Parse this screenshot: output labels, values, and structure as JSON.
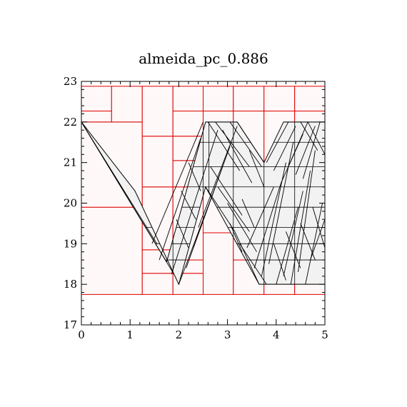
{
  "chart_data": {
    "type": "scatter",
    "title": "almeida_pc_0.886",
    "xlabel": "",
    "ylabel": "",
    "xlim": [
      0,
      5
    ],
    "ylim": [
      17,
      23
    ],
    "x_ticks": [
      "0",
      "1",
      "2",
      "3",
      "4",
      "5"
    ],
    "y_ticks": [
      "17",
      "18",
      "19",
      "20",
      "21",
      "22",
      "23"
    ],
    "grid": false,
    "colors": {
      "partition_lines": "#dd0000",
      "partition_fill": "#fff8f8",
      "trajectory": "#000000",
      "cell_fill": "#f2f2f2"
    },
    "partition_rects": [
      [
        0,
        1.25,
        17.75,
        19.9
      ],
      [
        0,
        1.25,
        19.9,
        22.0
      ],
      [
        0,
        0.62,
        22.0,
        22.27
      ],
      [
        0,
        0.62,
        22.27,
        22.88
      ],
      [
        0.62,
        1.25,
        22.0,
        22.88
      ],
      [
        1.25,
        1.88,
        17.75,
        18.27
      ],
      [
        1.25,
        1.88,
        18.27,
        18.85
      ],
      [
        1.25,
        1.88,
        18.85,
        20.4
      ],
      [
        1.25,
        1.88,
        20.4,
        21.65
      ],
      [
        1.25,
        1.88,
        21.65,
        22.88
      ],
      [
        1.88,
        2.5,
        17.75,
        18.27
      ],
      [
        1.88,
        2.5,
        18.27,
        18.6
      ],
      [
        1.88,
        2.5,
        18.6,
        20.4
      ],
      [
        1.88,
        2.5,
        20.4,
        21.05
      ],
      [
        1.88,
        2.5,
        21.05,
        21.65
      ],
      [
        1.88,
        2.5,
        21.65,
        22.27
      ],
      [
        1.88,
        2.5,
        22.27,
        22.88
      ],
      [
        2.5,
        3.12,
        17.75,
        19.27
      ],
      [
        2.5,
        3.12,
        19.27,
        22.27
      ],
      [
        2.5,
        3.12,
        22.27,
        22.88
      ],
      [
        3.12,
        3.75,
        17.75,
        18.6
      ],
      [
        3.12,
        3.75,
        18.6,
        22.27
      ],
      [
        3.12,
        3.75,
        22.27,
        22.88
      ],
      [
        3.75,
        4.38,
        17.75,
        22.27
      ],
      [
        3.75,
        4.38,
        22.27,
        22.88
      ],
      [
        4.38,
        5.0,
        17.75,
        18.85
      ],
      [
        4.38,
        5.0,
        18.85,
        19.9
      ],
      [
        4.38,
        5.0,
        19.9,
        22.27
      ],
      [
        4.38,
        5.0,
        22.27,
        22.88
      ]
    ],
    "trajectory": [
      [
        0,
        22.0
      ],
      [
        1.75,
        18.55
      ],
      [
        2.55,
        22.0
      ],
      [
        3.2,
        22.0
      ],
      [
        3.75,
        21.0
      ],
      [
        4.15,
        22.0
      ],
      [
        5.0,
        22.0
      ],
      [
        5.0,
        18.0
      ],
      [
        3.65,
        18.0
      ],
      [
        2.55,
        20.4
      ],
      [
        2.0,
        18.0
      ],
      [
        1.1,
        20.3
      ],
      [
        0.0,
        22.0
      ]
    ],
    "hatch_lines": [
      [
        [
          0,
          22.0
        ],
        [
          1.55,
          19.0
        ]
      ],
      [
        [
          0,
          22.0
        ],
        [
          1.9,
          18.25
        ]
      ],
      [
        [
          1.45,
          19.0
        ],
        [
          2.5,
          22.0
        ]
      ],
      [
        [
          1.6,
          18.6
        ],
        [
          2.45,
          21.6
        ]
      ],
      [
        [
          1.85,
          18.25
        ],
        [
          2.8,
          21.8
        ]
      ],
      [
        [
          2.0,
          18.0
        ],
        [
          2.75,
          20.4
        ]
      ],
      [
        [
          2.15,
          18.4
        ],
        [
          2.9,
          20.9
        ]
      ],
      [
        [
          2.3,
          18.9
        ],
        [
          3.05,
          21.4
        ]
      ],
      [
        [
          2.4,
          19.4
        ],
        [
          3.2,
          21.9
        ]
      ],
      [
        [
          2.55,
          20.4
        ],
        [
          3.15,
          19.3
        ]
      ],
      [
        [
          2.6,
          22.0
        ],
        [
          3.25,
          20.8
        ]
      ],
      [
        [
          2.75,
          22.0
        ],
        [
          3.45,
          20.9
        ]
      ],
      [
        [
          2.9,
          21.8
        ],
        [
          3.5,
          20.5
        ]
      ],
      [
        [
          3.05,
          22.0
        ],
        [
          3.7,
          20.9
        ]
      ],
      [
        [
          3.2,
          22.0
        ],
        [
          3.75,
          21.0
        ]
      ],
      [
        [
          2.65,
          20.9
        ],
        [
          3.3,
          19.7
        ]
      ],
      [
        [
          2.8,
          20.4
        ],
        [
          3.45,
          19.3
        ]
      ],
      [
        [
          3.0,
          20.0
        ],
        [
          3.6,
          18.8
        ]
      ],
      [
        [
          3.15,
          19.3
        ],
        [
          3.65,
          18.0
        ]
      ],
      [
        [
          3.25,
          19.0
        ],
        [
          3.8,
          18.0
        ]
      ],
      [
        [
          3.4,
          18.9
        ],
        [
          3.95,
          20.4
        ]
      ],
      [
        [
          3.55,
          18.4
        ],
        [
          4.1,
          20.5
        ]
      ],
      [
        [
          3.7,
          18.2
        ],
        [
          4.2,
          21.0
        ]
      ],
      [
        [
          3.85,
          18.5
        ],
        [
          4.35,
          21.5
        ]
      ],
      [
        [
          4.0,
          18.0
        ],
        [
          4.45,
          19.9
        ]
      ],
      [
        [
          4.15,
          18.2
        ],
        [
          4.55,
          20.3
        ]
      ],
      [
        [
          4.3,
          18.0
        ],
        [
          4.7,
          20.8
        ]
      ],
      [
        [
          4.45,
          18.3
        ],
        [
          4.8,
          21.3
        ]
      ],
      [
        [
          4.6,
          18.0
        ],
        [
          4.95,
          20.0
        ]
      ],
      [
        [
          4.7,
          18.6
        ],
        [
          5.0,
          19.6
        ]
      ],
      [
        [
          3.8,
          21.0
        ],
        [
          4.25,
          22.0
        ]
      ],
      [
        [
          3.95,
          20.8
        ],
        [
          4.4,
          21.9
        ]
      ],
      [
        [
          4.1,
          20.5
        ],
        [
          4.55,
          21.7
        ]
      ],
      [
        [
          4.25,
          20.9
        ],
        [
          4.65,
          22.0
        ]
      ],
      [
        [
          4.4,
          20.7
        ],
        [
          4.8,
          21.9
        ]
      ],
      [
        [
          4.55,
          20.6
        ],
        [
          4.9,
          22.0
        ]
      ],
      [
        [
          4.5,
          22.0
        ],
        [
          4.85,
          21.3
        ]
      ],
      [
        [
          4.65,
          22.0
        ],
        [
          5.0,
          21.2
        ]
      ],
      [
        [
          4.75,
          19.9
        ],
        [
          5.0,
          18.9
        ]
      ],
      [
        [
          4.5,
          19.5
        ],
        [
          4.8,
          18.6
        ]
      ],
      [
        [
          4.2,
          19.3
        ],
        [
          4.5,
          18.4
        ]
      ],
      [
        [
          3.95,
          19.0
        ],
        [
          4.2,
          18.1
        ]
      ],
      [
        [
          3.45,
          21.3
        ],
        [
          3.75,
          20.4
        ]
      ],
      [
        [
          3.3,
          20.1
        ],
        [
          3.55,
          19.4
        ]
      ],
      [
        [
          3.05,
          19.5
        ],
        [
          3.3,
          18.8
        ]
      ],
      [
        [
          2.2,
          21.0
        ],
        [
          2.45,
          20.3
        ]
      ],
      [
        [
          2.05,
          20.3
        ],
        [
          2.35,
          19.6
        ]
      ],
      [
        [
          1.95,
          19.6
        ],
        [
          2.2,
          18.9
        ]
      ]
    ],
    "cell_grid_x": [
      1.88,
      2.5,
      2.62,
      3.12,
      3.75,
      4.38,
      5.0
    ],
    "cell_grid_y": [
      18.0,
      18.6,
      19.0,
      19.4,
      19.9,
      20.4,
      20.9,
      21.5,
      22.0
    ]
  }
}
